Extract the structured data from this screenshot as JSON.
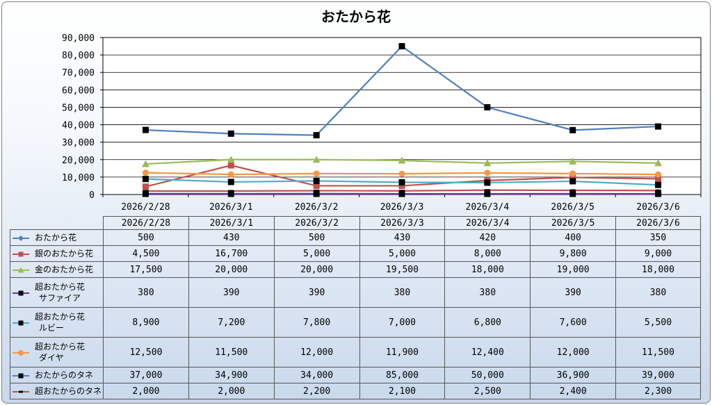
{
  "chart_data": {
    "type": "line",
    "title": "おたから花",
    "categories": [
      "2026/2/28",
      "2026/3/1",
      "2026/3/2",
      "2026/3/3",
      "2026/3/4",
      "2026/3/5",
      "2026/3/6"
    ],
    "ylim": [
      0,
      90000
    ],
    "yticks": [
      "0",
      "10,000",
      "20,000",
      "30,000",
      "40,000",
      "50,000",
      "60,000",
      "70,000",
      "80,000",
      "90,000"
    ],
    "grid": true,
    "legend": "data-table",
    "series": [
      {
        "name": "おたから花",
        "label_lines": [
          "おたから花"
        ],
        "color": "#4f81bd",
        "marker": "diamond",
        "values": [
          500,
          430,
          500,
          430,
          420,
          400,
          350
        ],
        "display": [
          "500",
          "430",
          "500",
          "430",
          "420",
          "400",
          "350"
        ]
      },
      {
        "name": "銀のおたから花",
        "label_lines": [
          "銀のおたから花"
        ],
        "color": "#c0504d",
        "marker": "square",
        "values": [
          4500,
          16700,
          5000,
          5000,
          8000,
          9800,
          9000
        ],
        "display": [
          "4,500",
          "16,700",
          "5,000",
          "5,000",
          "8,000",
          "9,800",
          "9,000"
        ]
      },
      {
        "name": "金のおたから花",
        "label_lines": [
          "金のおたから花"
        ],
        "color": "#9bbb59",
        "marker": "triangle",
        "values": [
          17500,
          20000,
          20000,
          19500,
          18000,
          19000,
          18000
        ],
        "display": [
          "17,500",
          "20,000",
          "20,000",
          "19,500",
          "18,000",
          "19,000",
          "18,000"
        ]
      },
      {
        "name": "超おたから花サファイア",
        "label_lines": [
          "超おたから花",
          "サファイア"
        ],
        "color": "#7030a0",
        "marker": "square-black",
        "values": [
          380,
          390,
          390,
          380,
          380,
          390,
          380
        ],
        "display": [
          "380",
          "390",
          "390",
          "380",
          "380",
          "390",
          "380"
        ]
      },
      {
        "name": "超おたから花ルビー",
        "label_lines": [
          "超おたから花",
          "ルビー"
        ],
        "color": "#4bacc6",
        "marker": "square-black",
        "values": [
          8900,
          7200,
          7800,
          7000,
          6800,
          7600,
          5500
        ],
        "display": [
          "8,900",
          "7,200",
          "7,800",
          "7,000",
          "6,800",
          "7,600",
          "5,500"
        ]
      },
      {
        "name": "超おたから花ダイヤ",
        "label_lines": [
          "超おたから花",
          "ダイヤ"
        ],
        "color": "#f79646",
        "marker": "circle",
        "values": [
          12500,
          11500,
          12000,
          11900,
          12400,
          12000,
          11500
        ],
        "display": [
          "12,500",
          "11,500",
          "12,000",
          "11,900",
          "12,400",
          "12,000",
          "11,500"
        ]
      },
      {
        "name": "おたからのタネ",
        "label_lines": [
          "おたからのタネ"
        ],
        "color": "#4f81bd",
        "marker": "square-black",
        "values": [
          37000,
          34900,
          34000,
          85000,
          50000,
          36900,
          39000
        ],
        "display": [
          "37,000",
          "34,900",
          "34,000",
          "85,000",
          "50,000",
          "36,900",
          "39,000"
        ]
      },
      {
        "name": "超おたからのタネ",
        "label_lines": [
          "超おたからのタネ"
        ],
        "color": "#c0504d",
        "marker": "dash",
        "values": [
          2000,
          2000,
          2200,
          2100,
          2500,
          2400,
          2300
        ],
        "display": [
          "2,000",
          "2,000",
          "2,200",
          "2,100",
          "2,500",
          "2,400",
          "2,300"
        ]
      }
    ]
  }
}
